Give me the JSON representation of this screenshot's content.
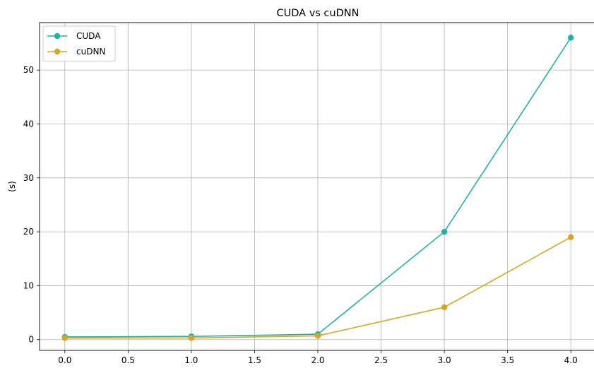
{
  "chart_data": {
    "type": "line",
    "title": "CUDA vs cuDNN",
    "xlabel": "",
    "ylabel": "(s)",
    "xlim": [
      -0.2,
      4.2
    ],
    "ylim": [
      -2.0,
      58.8
    ],
    "xticks": [
      0.0,
      0.5,
      1.0,
      1.5,
      2.0,
      2.5,
      3.0,
      3.5,
      4.0
    ],
    "xtick_labels": [
      "0.0",
      "0.5",
      "1.0",
      "1.5",
      "2.0",
      "2.5",
      "3.0",
      "3.5",
      "4.0"
    ],
    "yticks": [
      0,
      10,
      20,
      30,
      40,
      50
    ],
    "ytick_labels": [
      "0",
      "10",
      "20",
      "30",
      "40",
      "50"
    ],
    "grid": true,
    "legend_position": "top-left",
    "series": [
      {
        "name": "CUDA",
        "color": "#20b2aa",
        "x": [
          0,
          1,
          2,
          3,
          4
        ],
        "y": [
          0.5,
          0.6,
          1.0,
          20.0,
          56.0
        ]
      },
      {
        "name": "cuDNN",
        "color": "#daa520",
        "x": [
          0,
          1,
          2,
          3,
          4
        ],
        "y": [
          0.3,
          0.3,
          0.7,
          6.0,
          19.0
        ]
      }
    ]
  }
}
